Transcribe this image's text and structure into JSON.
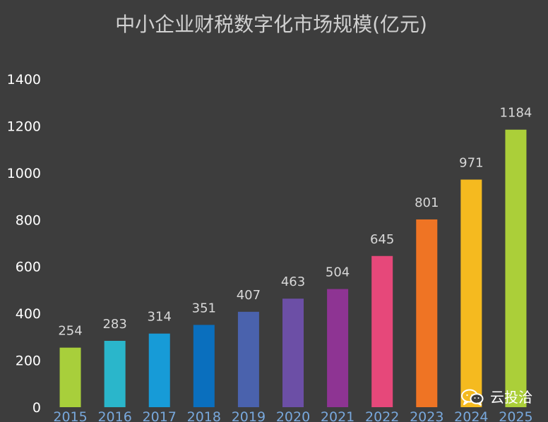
{
  "chart_data": {
    "type": "bar",
    "title": "中小企业财税数字化市场规模(亿元)",
    "categories": [
      "2015",
      "2016",
      "2017",
      "2018",
      "2019",
      "2020",
      "2021",
      "2022",
      "2023",
      "2024",
      "2025"
    ],
    "values": [
      254,
      283,
      314,
      351,
      407,
      463,
      504,
      645,
      801,
      971,
      1184
    ],
    "colors": [
      "#a8cf3b",
      "#2ab6cb",
      "#179bd7",
      "#0a6fbe",
      "#4a62ad",
      "#6c4fa6",
      "#8e3493",
      "#e6487a",
      "#ef7424",
      "#f5ba1f",
      "#abcf39"
    ],
    "yticks": [
      "0",
      "200",
      "400",
      "600",
      "800",
      "1000",
      "1200",
      "1400"
    ],
    "ylim": [
      0,
      1400
    ],
    "grid": false,
    "legend": "none"
  },
  "watermark": {
    "icon": "wechat-icon",
    "text": "云投洽"
  },
  "theme": {
    "background": "#3d3d3d",
    "title_color": "#d0d0d0",
    "tick_color": "#ffffff",
    "xtick_color": "#78a8dc",
    "label_color": "#d8d8d8"
  }
}
